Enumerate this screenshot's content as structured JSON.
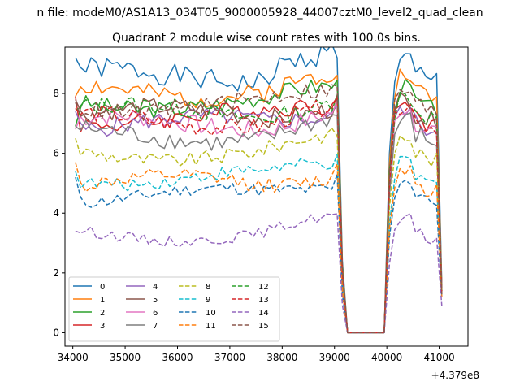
{
  "figure": {
    "suptitle": "n file: modeM0/AS1A13_034T05_9000005928_44007cztM0_level2_quad_clean"
  },
  "chart_data": {
    "type": "line",
    "title": "Quadrant 2 module wise count rates with 100.0s bins.",
    "xlabel": "",
    "ylabel": "",
    "x_offset_label": "+4.379e8",
    "xlim": [
      33850,
      41550
    ],
    "ylim": [
      -0.45,
      9.55
    ],
    "x_ticks": [
      34000,
      35000,
      36000,
      37000,
      38000,
      39000,
      40000,
      41000
    ],
    "y_ticks": [
      0,
      2,
      4,
      6,
      8
    ],
    "grid": false,
    "legend": {
      "position": "lower-left",
      "columns": 4
    },
    "gap": {
      "start": 39250,
      "end": 39950
    },
    "series": [
      {
        "name": "0",
        "color": "#1f77b4",
        "linestyle": "solid",
        "level": 8.6,
        "start": 9.2,
        "end": 1.6,
        "amp": 0.38,
        "seed": 1
      },
      {
        "name": "1",
        "color": "#ff7f0e",
        "linestyle": "solid",
        "level": 8.1,
        "start": 7.9,
        "end": 1.5,
        "amp": 0.35,
        "seed": 2
      },
      {
        "name": "2",
        "color": "#2ca02c",
        "linestyle": "solid",
        "level": 7.7,
        "start": 6.9,
        "end": 1.4,
        "amp": 0.3,
        "seed": 3
      },
      {
        "name": "3",
        "color": "#d62728",
        "linestyle": "solid",
        "level": 7.2,
        "start": 7.9,
        "end": 1.4,
        "amp": 0.3,
        "seed": 4
      },
      {
        "name": "4",
        "color": "#9467bd",
        "linestyle": "solid",
        "level": 7.0,
        "start": 7.4,
        "end": 1.4,
        "amp": 0.3,
        "seed": 5
      },
      {
        "name": "5",
        "color": "#8c564b",
        "linestyle": "solid",
        "level": 7.3,
        "start": 7.8,
        "end": 1.4,
        "amp": 0.32,
        "seed": 6
      },
      {
        "name": "6",
        "color": "#e377c2",
        "linestyle": "solid",
        "level": 7.0,
        "start": 6.8,
        "end": 1.4,
        "amp": 0.32,
        "seed": 7
      },
      {
        "name": "7",
        "color": "#7f7f7f",
        "linestyle": "solid",
        "level": 6.6,
        "start": 6.9,
        "end": 1.4,
        "amp": 0.32,
        "seed": 8
      },
      {
        "name": "8",
        "color": "#bcbd22",
        "linestyle": "dashed",
        "level": 6.0,
        "start": 6.5,
        "end": 1.3,
        "amp": 0.25,
        "seed": 9
      },
      {
        "name": "9",
        "color": "#17becf",
        "linestyle": "dashed",
        "level": 5.2,
        "start": 5.4,
        "end": 1.3,
        "amp": 0.22,
        "seed": 10
      },
      {
        "name": "10",
        "color": "#1f77b4",
        "linestyle": "dashed",
        "level": 4.6,
        "start": 5.2,
        "end": 1.2,
        "amp": 0.22,
        "seed": 11
      },
      {
        "name": "11",
        "color": "#ff7f0e",
        "linestyle": "dashed",
        "level": 5.0,
        "start": 5.7,
        "end": 1.2,
        "amp": 0.25,
        "seed": 12
      },
      {
        "name": "12",
        "color": "#2ca02c",
        "linestyle": "dashed",
        "level": 7.4,
        "start": 7.4,
        "end": 1.3,
        "amp": 0.3,
        "seed": 13
      },
      {
        "name": "13",
        "color": "#d62728",
        "linestyle": "dashed",
        "level": 7.1,
        "start": 7.5,
        "end": 1.3,
        "amp": 0.3,
        "seed": 14
      },
      {
        "name": "14",
        "color": "#9467bd",
        "linestyle": "dashed",
        "level": 3.3,
        "start": 3.4,
        "end": 0.9,
        "amp": 0.18,
        "seed": 15
      },
      {
        "name": "15",
        "color": "#8c564b",
        "linestyle": "dashed",
        "level": 7.6,
        "start": 7.7,
        "end": 1.3,
        "amp": 0.3,
        "seed": 16
      }
    ]
  }
}
